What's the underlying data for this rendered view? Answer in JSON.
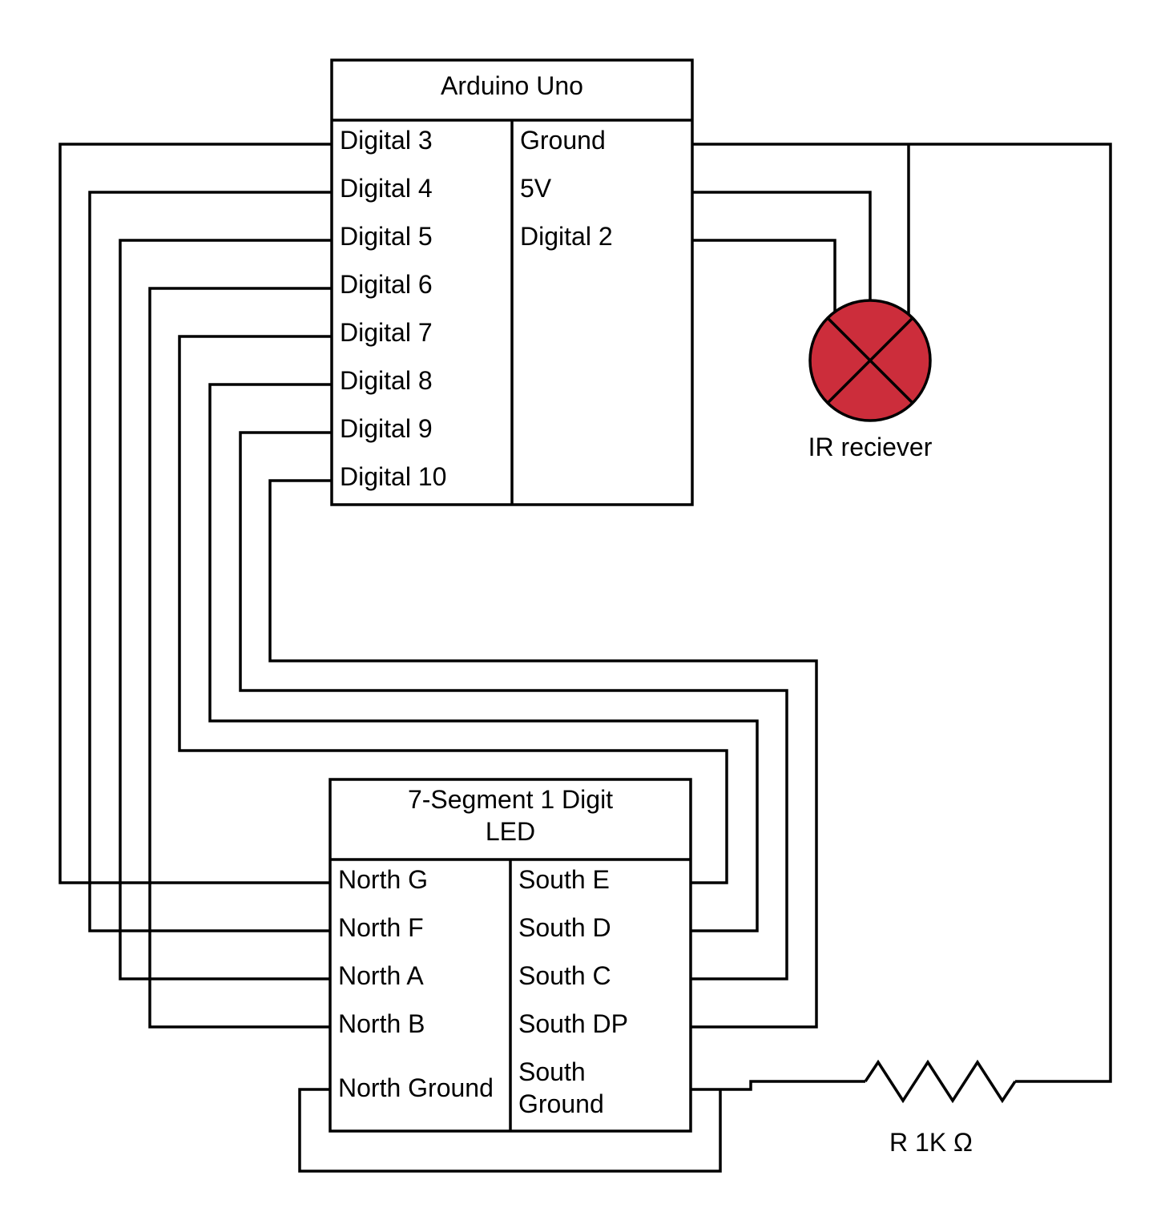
{
  "arduino": {
    "title": "Arduino Uno",
    "left_pins": [
      "Digital 3",
      "Digital 4",
      "Digital 5",
      "Digital 6",
      "Digital 7",
      "Digital 8",
      "Digital 9",
      "Digital 10"
    ],
    "right_pins": [
      "Ground",
      "5V",
      "Digital 2"
    ]
  },
  "ir": {
    "label": "IR reciever",
    "fill_color": "#cc2d3b"
  },
  "segment": {
    "title_line1": "7-Segment 1 Digit",
    "title_line2": "LED",
    "left_pins": [
      "North G",
      "North F",
      "North A",
      "North B",
      "North Ground"
    ],
    "right_pins": [
      "South E",
      "South D",
      "South C",
      "South DP"
    ],
    "south_ground_line1": "South",
    "south_ground_line2": "Ground"
  },
  "resistor": {
    "label": "R 1K Ω"
  }
}
